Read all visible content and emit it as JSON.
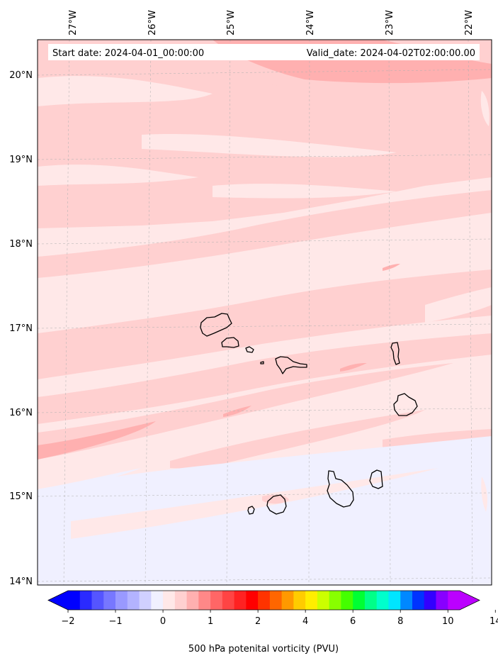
{
  "map": {
    "start_label": "Start date: 2024-04-01_00:00:00",
    "valid_label": "Valid_date: 2024-04-02T02:00:00.00",
    "lon_labels": [
      "27°W",
      "26°W",
      "25°W",
      "24°W",
      "23°W",
      "22°W"
    ],
    "lat_labels": [
      "20°N",
      "19°N",
      "18°N",
      "17°N",
      "16°N",
      "15°N",
      "14°N"
    ],
    "field_colors": {
      "light_pink": "#ffe8e8",
      "pink": "#ffd0d0",
      "medium_pink": "#ffb0b0",
      "light_lavender": "#f0f0ff",
      "coast": "#000000"
    },
    "islands": [
      "Santo Antão",
      "São Vicente",
      "Santa Luzia",
      "Raso",
      "São Nicolau",
      "Sal",
      "Boa Vista",
      "Maio",
      "Santiago",
      "Fogo",
      "Brava"
    ]
  },
  "colorbar": {
    "label": "500 hPa potenital vorticity (PVU)",
    "tick_labels": [
      "−2",
      "−1",
      "0",
      "1",
      "2",
      "4",
      "6",
      "8",
      "10",
      "14"
    ],
    "colors": [
      "#0000ff",
      "#2a2aff",
      "#5555ff",
      "#7777ff",
      "#9999ff",
      "#b3b3ff",
      "#d0d0ff",
      "#f0f0ff",
      "#ffe8e8",
      "#ffd0d0",
      "#ffb0b0",
      "#ff8888",
      "#ff6666",
      "#ff4444",
      "#ff2222",
      "#ff0000",
      "#ff3300",
      "#ff6600",
      "#ff9900",
      "#ffcc00",
      "#ffee00",
      "#ccff00",
      "#88ff00",
      "#44ff00",
      "#00ff33",
      "#00ff88",
      "#00ffcc",
      "#00e5ff",
      "#0088ff",
      "#0033ff",
      "#3300ff",
      "#8800ff",
      "#bb00ff"
    ]
  }
}
